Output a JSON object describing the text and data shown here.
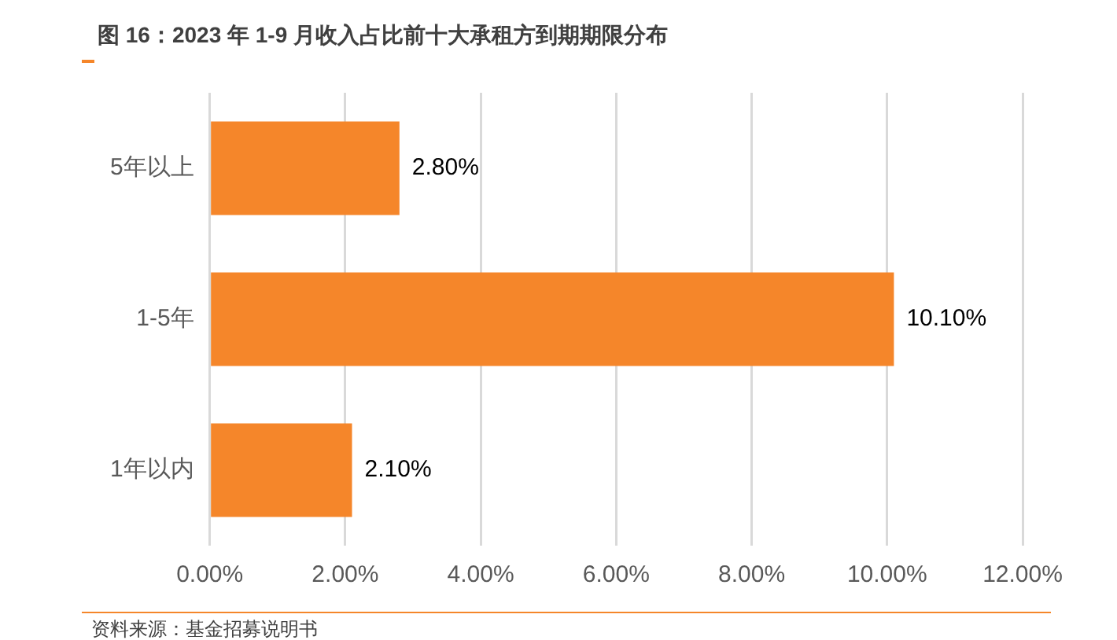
{
  "chart_data": {
    "type": "bar",
    "orientation": "horizontal",
    "title": "图 16：2023 年 1-9 月收入占比前十大承租方到期期限分布",
    "categories": [
      "5年以上",
      "1-5年",
      "1年以内"
    ],
    "values": [
      2.8,
      10.1,
      2.1
    ],
    "color": "#f5862a",
    "value_labels": [
      "2.80%",
      "10.10%",
      "2.10%"
    ],
    "xlim": [
      0,
      12
    ],
    "xticks": [
      {
        "value": 0,
        "label": "0.00%"
      },
      {
        "value": 2,
        "label": "2.00%"
      },
      {
        "value": 4,
        "label": "4.00%"
      },
      {
        "value": 6,
        "label": "6.00%"
      },
      {
        "value": 8,
        "label": "8.00%"
      },
      {
        "value": 10,
        "label": "10.00%"
      },
      {
        "value": 12,
        "label": "12.00%"
      }
    ],
    "grid": "x",
    "legend": false,
    "annotations": [
      "资料来源：基金招募说明书"
    ]
  }
}
